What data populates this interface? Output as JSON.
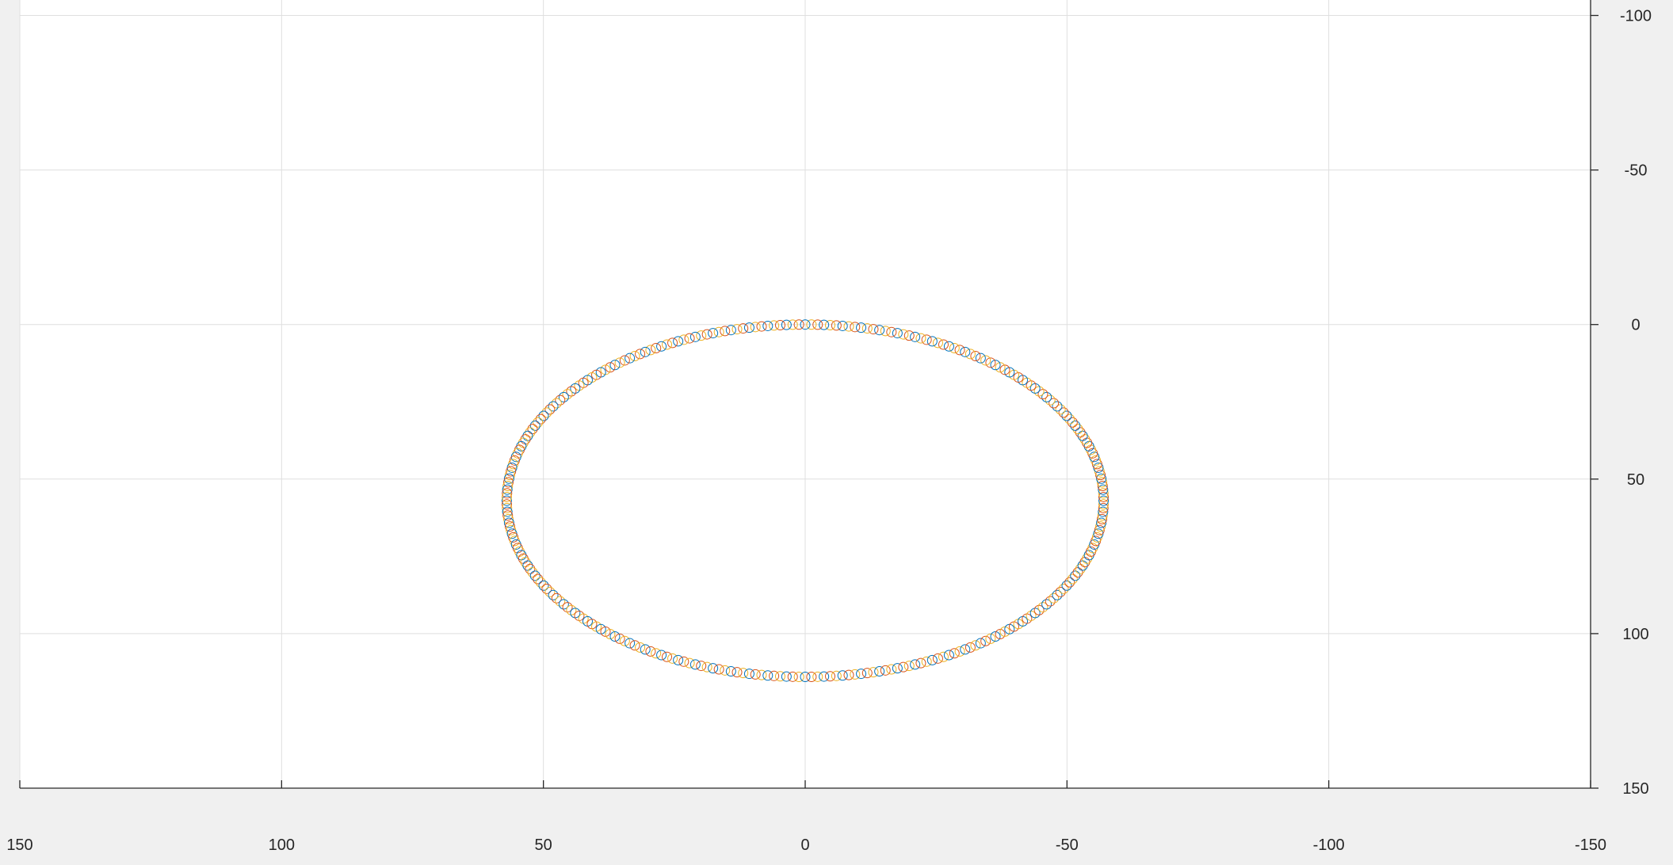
{
  "chart_data": {
    "type": "scatter",
    "title": "",
    "xlabel": "",
    "ylabel": "",
    "x_axis": {
      "direction": "reversed",
      "location": "bottom",
      "lim": [
        -150,
        150
      ],
      "ticks": [
        150,
        100,
        50,
        0,
        -50,
        -100,
        -150
      ],
      "tick_labels": [
        "150",
        "100",
        "50",
        "0",
        "-50",
        "-100",
        "-150"
      ]
    },
    "y_axis": {
      "direction": "reversed",
      "location": "right",
      "lim": [
        -105,
        150
      ],
      "ticks": [
        -100,
        -50,
        0,
        50,
        100,
        150
      ],
      "tick_labels": [
        "-100",
        "-50",
        "0",
        "50",
        "100",
        "150"
      ]
    },
    "grid": true,
    "marker": "open-circle",
    "series": [
      {
        "shape": "ellipse",
        "center": [
          0,
          57
        ],
        "semi_axis_x": 57,
        "semi_axis_y": 57,
        "n_points": 300,
        "color_cycle": [
          "#0072bd",
          "#d95319",
          "#edb120"
        ]
      }
    ]
  }
}
